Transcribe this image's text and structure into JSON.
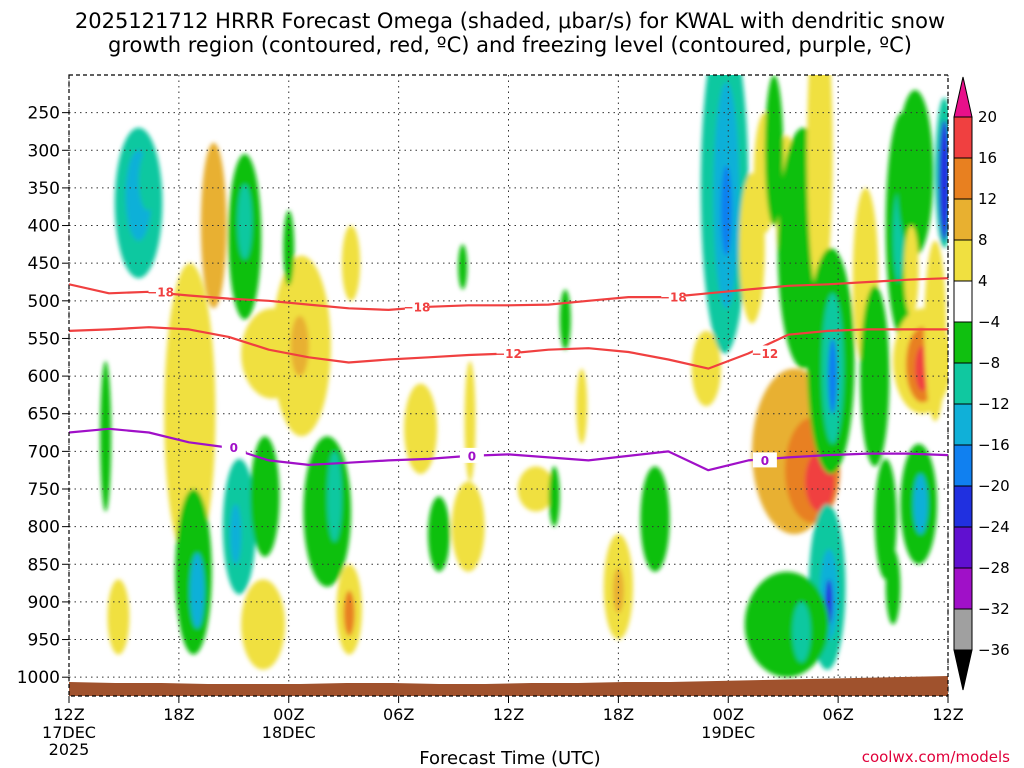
{
  "chart_data": {
    "type": "heatmap",
    "title_line1": "2025121712 HRRR Forecast Omega (shaded, μbar/s) for KWAL with dendritic snow",
    "title_line2": "growth region (contoured, red, ºC) and freezing level (contoured, purple, ºC)",
    "xlabel": "Forecast Time (UTC)",
    "credit": "coolwx.com/models",
    "x_hours": [
      0,
      6,
      12,
      18,
      24,
      30,
      36,
      42,
      48
    ],
    "x_ticks": [
      {
        "h": 0,
        "label": "12Z",
        "sub1": "17DEC",
        "sub2": "2025"
      },
      {
        "h": 6,
        "label": "18Z"
      },
      {
        "h": 12,
        "label": "00Z",
        "sub1": "18DEC"
      },
      {
        "h": 18,
        "label": "06Z"
      },
      {
        "h": 24,
        "label": "12Z"
      },
      {
        "h": 30,
        "label": "18Z"
      },
      {
        "h": 36,
        "label": "00Z",
        "sub1": "19DEC"
      },
      {
        "h": 42,
        "label": "06Z"
      },
      {
        "h": 48,
        "label": "12Z"
      }
    ],
    "y_levels": [
      250,
      300,
      350,
      400,
      450,
      500,
      550,
      600,
      650,
      700,
      750,
      800,
      850,
      900,
      950,
      1000
    ],
    "y_range_hpa": [
      200,
      1025
    ],
    "colorbar": {
      "bounds": [
        -36,
        -32,
        -28,
        -24,
        -20,
        -16,
        -12,
        -8,
        -4,
        4,
        8,
        12,
        16,
        20
      ],
      "labels": [
        "20",
        "16",
        "12",
        "8",
        "4",
        "−4",
        "−8",
        "−12",
        "−16",
        "−20",
        "−24",
        "−28",
        "−32",
        "−36"
      ],
      "colors": [
        "#a0a0a0",
        "#a010c8",
        "#6010d0",
        "#2030e0",
        "#1080f0",
        "#10b0d8",
        "#10c8a0",
        "#10c010",
        "#ffffff",
        "#f0e040",
        "#e8b030",
        "#e88020",
        "#f04040"
      ],
      "over_color": "#e8108a",
      "under_color": "#000000"
    },
    "dgz_contours": [
      {
        "value": -18,
        "label": "−18",
        "color": "#f04040",
        "hpa": [
          478,
          490,
          488,
          493,
          497,
          500,
          505,
          510,
          512,
          508,
          506,
          506,
          505,
          500,
          495,
          495,
          490,
          485,
          480,
          478,
          475,
          472,
          470
        ]
      },
      {
        "value": -12,
        "label": "−12",
        "color": "#f04040",
        "hpa": [
          540,
          538,
          535,
          538,
          548,
          565,
          575,
          582,
          578,
          575,
          572,
          570,
          565,
          563,
          568,
          578,
          590,
          570,
          545,
          540,
          538,
          538,
          538
        ]
      }
    ],
    "freezing_contour": {
      "value": 0,
      "label": "0",
      "color": "#a010c8",
      "hpa": [
        675,
        670,
        675,
        688,
        695,
        712,
        718,
        715,
        712,
        710,
        706,
        704,
        708,
        712,
        706,
        700,
        725,
        712,
        708,
        705,
        703,
        703,
        705
      ]
    },
    "omega_cells": [
      {
        "h": 3.8,
        "p": 370,
        "rh": 1.3,
        "rp": 100,
        "v": -12
      },
      {
        "h": 3.8,
        "p": 360,
        "rh": 0.7,
        "rp": 60,
        "v": -14
      },
      {
        "h": 4.3,
        "p": 340,
        "rh": 0.5,
        "rp": 40,
        "v": -10
      },
      {
        "h": 9.6,
        "p": 415,
        "rh": 0.9,
        "rp": 110,
        "v": -8
      },
      {
        "h": 9.6,
        "p": 395,
        "rh": 0.4,
        "rp": 50,
        "v": -10
      },
      {
        "h": 7.9,
        "p": 400,
        "rh": 0.7,
        "rp": 110,
        "v": 8
      },
      {
        "h": 7.9,
        "p": 410,
        "rh": 0.35,
        "rp": 60,
        "v": 10
      },
      {
        "h": 6.6,
        "p": 650,
        "rh": 1.4,
        "rp": 200,
        "v": 5
      },
      {
        "h": 11.1,
        "p": 570,
        "rh": 1.7,
        "rp": 60,
        "v": 5
      },
      {
        "h": 12.7,
        "p": 560,
        "rh": 1.6,
        "rp": 120,
        "v": 6
      },
      {
        "h": 12.6,
        "p": 560,
        "rh": 0.5,
        "rp": 40,
        "v": 9
      },
      {
        "h": 15.4,
        "p": 450,
        "rh": 0.5,
        "rp": 50,
        "v": 5
      },
      {
        "h": 12.0,
        "p": 430,
        "rh": 0.3,
        "rp": 50,
        "v": -6
      },
      {
        "h": 9.3,
        "p": 800,
        "rh": 0.9,
        "rp": 90,
        "v": -10
      },
      {
        "h": 9.1,
        "p": 810,
        "rh": 0.3,
        "rp": 40,
        "v": -14
      },
      {
        "h": 10.7,
        "p": 760,
        "rh": 0.8,
        "rp": 80,
        "v": -8
      },
      {
        "h": 6.8,
        "p": 860,
        "rh": 1.0,
        "rp": 110,
        "v": -8
      },
      {
        "h": 7.0,
        "p": 885,
        "rh": 0.4,
        "rp": 50,
        "v": -14
      },
      {
        "h": 2.7,
        "p": 920,
        "rh": 0.6,
        "rp": 50,
        "v": 5
      },
      {
        "h": 2.0,
        "p": 680,
        "rh": 0.3,
        "rp": 100,
        "v": -6
      },
      {
        "h": 10.6,
        "p": 930,
        "rh": 1.2,
        "rp": 60,
        "v": 5
      },
      {
        "h": 14.1,
        "p": 780,
        "rh": 1.3,
        "rp": 100,
        "v": -8
      },
      {
        "h": 14.5,
        "p": 760,
        "rh": 0.4,
        "rp": 60,
        "v": -12
      },
      {
        "h": 15.3,
        "p": 910,
        "rh": 0.7,
        "rp": 60,
        "v": 6
      },
      {
        "h": 15.3,
        "p": 915,
        "rh": 0.3,
        "rp": 30,
        "v": 12
      },
      {
        "h": 19.2,
        "p": 670,
        "rh": 0.9,
        "rp": 60,
        "v": 5
      },
      {
        "h": 20.2,
        "p": 810,
        "rh": 0.6,
        "rp": 50,
        "v": -8
      },
      {
        "h": 21.8,
        "p": 800,
        "rh": 0.9,
        "rp": 60,
        "v": 5
      },
      {
        "h": 21.9,
        "p": 660,
        "rh": 0.3,
        "rp": 80,
        "v": 5
      },
      {
        "h": 21.5,
        "p": 455,
        "rh": 0.25,
        "rp": 30,
        "v": -6
      },
      {
        "h": 25.5,
        "p": 750,
        "rh": 1.0,
        "rp": 30,
        "v": 5
      },
      {
        "h": 26.5,
        "p": 760,
        "rh": 0.3,
        "rp": 40,
        "v": -6
      },
      {
        "h": 28.0,
        "p": 640,
        "rh": 0.3,
        "rp": 50,
        "v": 5
      },
      {
        "h": 27.1,
        "p": 525,
        "rh": 0.3,
        "rp": 40,
        "v": -6
      },
      {
        "h": 30.0,
        "p": 880,
        "rh": 0.8,
        "rp": 70,
        "v": 5
      },
      {
        "h": 30.0,
        "p": 885,
        "rh": 0.3,
        "rp": 30,
        "v": 10
      },
      {
        "h": 32.0,
        "p": 790,
        "rh": 0.8,
        "rp": 70,
        "v": -6
      },
      {
        "h": 34.8,
        "p": 590,
        "rh": 0.8,
        "rp": 50,
        "v": 5
      },
      {
        "h": 35.8,
        "p": 350,
        "rh": 1.3,
        "rp": 220,
        "v": -10
      },
      {
        "h": 35.9,
        "p": 360,
        "rh": 0.7,
        "rp": 150,
        "v": -14
      },
      {
        "h": 35.9,
        "p": 380,
        "rh": 0.3,
        "rp": 60,
        "v": -18
      },
      {
        "h": 37.3,
        "p": 430,
        "rh": 0.7,
        "rp": 100,
        "v": 5
      },
      {
        "h": 38.0,
        "p": 330,
        "rh": 0.6,
        "rp": 80,
        "v": 5
      },
      {
        "h": 39.2,
        "p": 380,
        "rh": 0.6,
        "rp": 100,
        "v": 5
      },
      {
        "h": 38.5,
        "p": 300,
        "rh": 0.5,
        "rp": 100,
        "v": -6
      },
      {
        "h": 40.1,
        "p": 430,
        "rh": 1.4,
        "rp": 160,
        "v": -8
      },
      {
        "h": 41.0,
        "p": 300,
        "rh": 0.7,
        "rp": 200,
        "v": 5
      },
      {
        "h": 39.6,
        "p": 700,
        "rh": 2.3,
        "rp": 110,
        "v": 8
      },
      {
        "h": 40.6,
        "p": 725,
        "rh": 1.5,
        "rp": 70,
        "v": 12
      },
      {
        "h": 41.0,
        "p": 740,
        "rh": 0.8,
        "rp": 40,
        "v": 16
      },
      {
        "h": 41.6,
        "p": 580,
        "rh": 1.3,
        "rp": 150,
        "v": -8
      },
      {
        "h": 41.7,
        "p": 590,
        "rh": 0.6,
        "rp": 100,
        "v": -12
      },
      {
        "h": 41.7,
        "p": 600,
        "rh": 0.25,
        "rp": 50,
        "v": -18
      },
      {
        "h": 41.4,
        "p": 880,
        "rh": 1.0,
        "rp": 110,
        "v": -10
      },
      {
        "h": 41.5,
        "p": 890,
        "rh": 0.5,
        "rp": 60,
        "v": -16
      },
      {
        "h": 41.5,
        "p": 900,
        "rh": 0.2,
        "rp": 30,
        "v": -22
      },
      {
        "h": 39.2,
        "p": 930,
        "rh": 2.3,
        "rp": 70,
        "v": -8
      },
      {
        "h": 40.0,
        "p": 940,
        "rh": 0.5,
        "rp": 40,
        "v": -12
      },
      {
        "h": 43.5,
        "p": 470,
        "rh": 0.7,
        "rp": 120,
        "v": 5
      },
      {
        "h": 44.0,
        "p": 600,
        "rh": 0.8,
        "rp": 120,
        "v": -6
      },
      {
        "h": 45.5,
        "p": 400,
        "rh": 0.9,
        "rp": 150,
        "v": -8
      },
      {
        "h": 45.3,
        "p": 415,
        "rh": 0.3,
        "rp": 60,
        "v": -12
      },
      {
        "h": 46.2,
        "p": 330,
        "rh": 1.0,
        "rp": 110,
        "v": -6
      },
      {
        "h": 46.0,
        "p": 460,
        "rh": 0.4,
        "rp": 60,
        "v": 5
      },
      {
        "h": 46.6,
        "p": 580,
        "rh": 1.6,
        "rp": 70,
        "v": 5
      },
      {
        "h": 46.6,
        "p": 585,
        "rh": 0.9,
        "rp": 50,
        "v": 12
      },
      {
        "h": 46.6,
        "p": 590,
        "rh": 0.4,
        "rp": 30,
        "v": 16
      },
      {
        "h": 47.3,
        "p": 540,
        "rh": 0.6,
        "rp": 120,
        "v": 5
      },
      {
        "h": 46.4,
        "p": 770,
        "rh": 1.0,
        "rp": 80,
        "v": -8
      },
      {
        "h": 46.5,
        "p": 770,
        "rh": 0.4,
        "rp": 40,
        "v": -16
      },
      {
        "h": 47.8,
        "p": 330,
        "rh": 0.5,
        "rp": 100,
        "v": -10
      },
      {
        "h": 47.8,
        "p": 340,
        "rh": 0.3,
        "rp": 80,
        "v": -24
      },
      {
        "h": 44.6,
        "p": 790,
        "rh": 0.6,
        "rp": 80,
        "v": -6
      },
      {
        "h": 45.0,
        "p": 880,
        "rh": 0.4,
        "rp": 50,
        "v": -6
      }
    ],
    "terrain_color": "#a0522d",
    "contour_note": "contour label positions approximate"
  }
}
